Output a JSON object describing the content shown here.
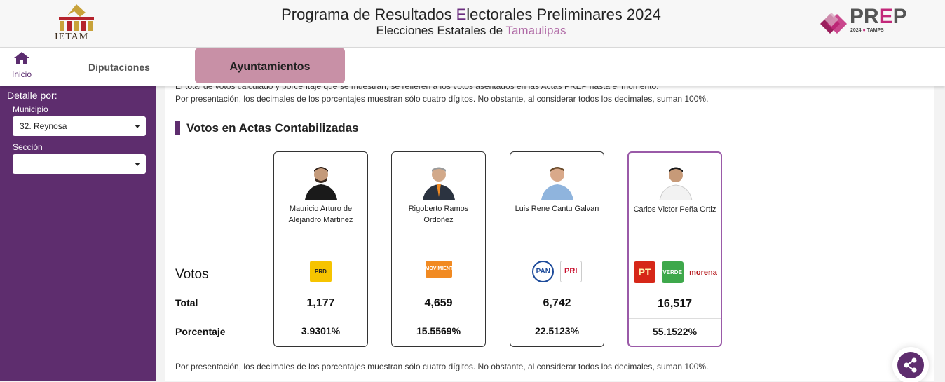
{
  "header": {
    "org": "IETAM",
    "title_prefix": "Programa de Resultados ",
    "title_highlight": "E",
    "title_suffix": "lectorales Preliminares 2024",
    "subtitle_prefix": "Elecciones Estatales de ",
    "subtitle_highlight": "Tamaulipas",
    "prep_p": "PR",
    "prep_e": "E",
    "prep_end": "P",
    "prep_year": "2024",
    "prep_state": "TAMPS"
  },
  "nav": {
    "home_label": "Inicio",
    "tabs": [
      {
        "label": "Diputaciones"
      },
      {
        "label": "Ayuntamientos"
      }
    ]
  },
  "sidebar": {
    "title": "Detalle por:",
    "municipio_label": "Municipio",
    "municipio_value": "32. Reynosa",
    "seccion_label": "Sección",
    "seccion_value": ""
  },
  "main": {
    "note_top1": "El total de votos calculado y porcentaje que se muestran, se refieren a los votos asentados en las Actas PREP hasta el momento.",
    "note_top2": "Por presentación, los decimales de los porcentajes muestran sólo cuatro dígitos. No obstante, al considerar todos los decimales, suman 100%.",
    "section_title": "Votos en Actas Contabilizadas",
    "row_votos": "Votos",
    "row_total": "Total",
    "row_pct": "Porcentaje",
    "note_bottom": "Por presentación, los decimales de los porcentajes muestran sólo cuatro dígitos. No obstante, al considerar todos los decimales, suman 100%."
  },
  "candidates": [
    {
      "name": "Mauricio Arturo de Alejandro Martinez",
      "total": "1,177",
      "pct": "3.9301%"
    },
    {
      "name": "Rigoberto Ramos Ordoñez",
      "total": "4,659",
      "pct": "15.5569%"
    },
    {
      "name": "Luis Rene Cantu Galvan",
      "total": "6,742",
      "pct": "22.5123%"
    },
    {
      "name": "Carlos Victor Peña Ortiz",
      "total": "16,517",
      "pct": "55.1522%"
    }
  ],
  "parties": {
    "prd": "PRD",
    "mc": "MOVIMIENTO CIUDADANO",
    "pan": "PAN",
    "pri": "PRI",
    "pt": "PT",
    "verde": "VERDE",
    "morena": "morena"
  },
  "colors": {
    "purple": "#5e2d6e",
    "active_tab": "#c890a6",
    "winner_border": "#9a5aa8",
    "prep_accent": "#c2287a"
  }
}
